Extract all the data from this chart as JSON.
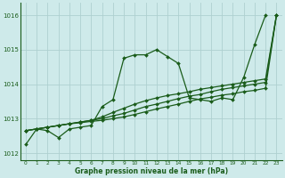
{
  "title": "Graphe pression niveau de la mer (hPa)",
  "background_color": "#ceeaea",
  "grid_color": "#aed0d0",
  "line_color": "#1a5c1a",
  "xlim": [
    -0.5,
    23.5
  ],
  "ylim": [
    1011.8,
    1016.35
  ],
  "yticks": [
    1012,
    1013,
    1014,
    1015,
    1016
  ],
  "xticks": [
    0,
    1,
    2,
    3,
    4,
    5,
    6,
    7,
    8,
    9,
    10,
    11,
    12,
    13,
    14,
    15,
    16,
    17,
    18,
    19,
    20,
    21,
    22,
    23
  ],
  "series": [
    {
      "x": [
        0,
        1,
        2,
        3,
        4,
        5,
        6,
        7,
        8,
        9,
        10,
        11,
        12,
        13,
        14,
        15,
        16,
        17,
        18,
        19,
        20,
        21,
        22
      ],
      "y": [
        1012.25,
        1012.7,
        1012.65,
        1012.45,
        1012.7,
        1012.75,
        1012.8,
        1013.35,
        1013.55,
        1014.75,
        1014.85,
        1014.85,
        1015.0,
        1014.8,
        1014.6,
        1013.6,
        1013.55,
        1013.5,
        1013.6,
        1013.55,
        1014.2,
        1015.15,
        1016.0
      ]
    },
    {
      "x": [
        0,
        1,
        2,
        3,
        4,
        5,
        6,
        7,
        8,
        9,
        10,
        11,
        12,
        13,
        14,
        15,
        16,
        17,
        18,
        19,
        20,
        21,
        22,
        23
      ],
      "y": [
        1012.65,
        1012.7,
        1012.75,
        1012.8,
        1012.85,
        1012.9,
        1012.95,
        1013.0,
        1013.08,
        1013.15,
        1013.25,
        1013.35,
        1013.42,
        1013.5,
        1013.58,
        1013.65,
        1013.7,
        1013.78,
        1013.85,
        1013.9,
        1013.95,
        1014.0,
        1014.05,
        1016.0
      ]
    },
    {
      "x": [
        0,
        1,
        2,
        3,
        4,
        5,
        6,
        7,
        8,
        9,
        10,
        11,
        12,
        13,
        14,
        15,
        16,
        17,
        18,
        19,
        20,
        21,
        22,
        23
      ],
      "y": [
        1012.65,
        1012.7,
        1012.75,
        1012.8,
        1012.85,
        1012.88,
        1012.92,
        1012.95,
        1013.0,
        1013.05,
        1013.12,
        1013.2,
        1013.28,
        1013.35,
        1013.42,
        1013.5,
        1013.57,
        1013.62,
        1013.68,
        1013.72,
        1013.78,
        1013.82,
        1013.88,
        1016.0
      ]
    },
    {
      "x": [
        0,
        1,
        2,
        3,
        4,
        5,
        6,
        7,
        8,
        9,
        10,
        11,
        12,
        13,
        14,
        15,
        16,
        17,
        18,
        19,
        20,
        21,
        22,
        23
      ],
      "y": [
        1012.65,
        1012.7,
        1012.75,
        1012.8,
        1012.85,
        1012.9,
        1012.95,
        1013.05,
        1013.18,
        1013.3,
        1013.42,
        1013.52,
        1013.6,
        1013.67,
        1013.72,
        1013.78,
        1013.85,
        1013.9,
        1013.95,
        1014.0,
        1014.05,
        1014.1,
        1014.15,
        1016.0
      ]
    }
  ],
  "marker": "D",
  "markersize": 2.0,
  "linewidth": 0.9
}
